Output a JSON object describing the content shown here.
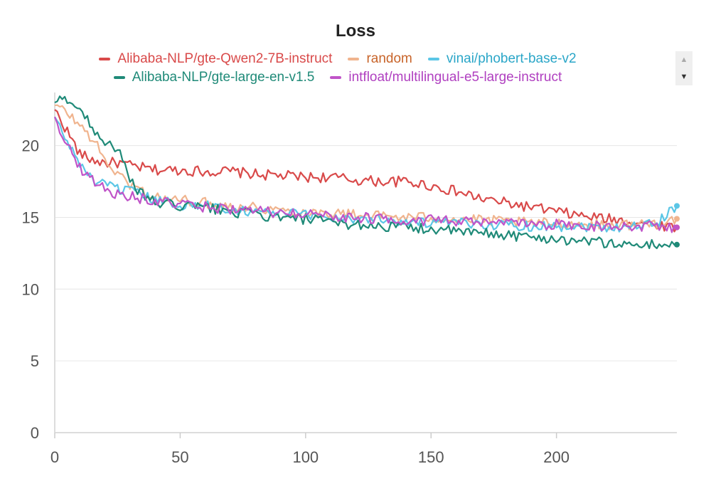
{
  "chart_data": {
    "type": "line",
    "title": "Loss",
    "xlabel": "",
    "ylabel": "",
    "xlim": [
      0,
      248
    ],
    "ylim": [
      0,
      23.7
    ],
    "xticks": [
      0,
      50,
      100,
      150,
      200
    ],
    "yticks": [
      0,
      5,
      10,
      15,
      20
    ],
    "grid": true,
    "legend_position": "top-center",
    "series": [
      {
        "name": "Alibaba-NLP/gte-Qwen2-7B-instruct",
        "color": "#d94a4a",
        "legend_text_color": "#d94a4a",
        "points": [
          [
            0,
            22.5
          ],
          [
            5,
            21.0
          ],
          [
            10,
            19.4
          ],
          [
            15,
            19.0
          ],
          [
            20,
            18.8
          ],
          [
            25,
            18.8
          ],
          [
            30,
            18.6
          ],
          [
            40,
            18.3
          ],
          [
            50,
            18.3
          ],
          [
            60,
            18.2
          ],
          [
            70,
            18.2
          ],
          [
            80,
            18.0
          ],
          [
            90,
            17.9
          ],
          [
            100,
            17.8
          ],
          [
            110,
            17.8
          ],
          [
            120,
            17.6
          ],
          [
            130,
            17.5
          ],
          [
            140,
            17.5
          ],
          [
            150,
            17.2
          ],
          [
            160,
            16.8
          ],
          [
            170,
            16.3
          ],
          [
            180,
            16.0
          ],
          [
            190,
            15.7
          ],
          [
            200,
            15.4
          ],
          [
            210,
            15.1
          ],
          [
            220,
            14.9
          ],
          [
            230,
            14.7
          ],
          [
            240,
            14.5
          ],
          [
            248,
            14.3
          ]
        ]
      },
      {
        "name": "random",
        "color": "#f0b48e",
        "legend_text_color": "#c8642a",
        "points": [
          [
            0,
            22.8
          ],
          [
            5,
            22.3
          ],
          [
            10,
            21.4
          ],
          [
            15,
            20.5
          ],
          [
            20,
            19.0
          ],
          [
            25,
            18.0
          ],
          [
            30,
            17.3
          ],
          [
            40,
            16.4
          ],
          [
            50,
            16.2
          ],
          [
            60,
            16.0
          ],
          [
            70,
            15.8
          ],
          [
            80,
            15.7
          ],
          [
            90,
            15.5
          ],
          [
            100,
            15.4
          ],
          [
            110,
            15.3
          ],
          [
            120,
            15.2
          ],
          [
            130,
            15.1
          ],
          [
            140,
            15.0
          ],
          [
            150,
            15.0
          ],
          [
            160,
            14.9
          ],
          [
            170,
            14.8
          ],
          [
            180,
            14.7
          ],
          [
            190,
            14.6
          ],
          [
            200,
            14.6
          ],
          [
            210,
            14.5
          ],
          [
            220,
            14.5
          ],
          [
            230,
            14.5
          ],
          [
            240,
            14.6
          ],
          [
            248,
            14.9
          ]
        ]
      },
      {
        "name": "vinai/phobert-base-v2",
        "color": "#5bc6e6",
        "legend_text_color": "#2aa6c8",
        "points": [
          [
            0,
            22.0
          ],
          [
            5,
            20.2
          ],
          [
            10,
            18.8
          ],
          [
            15,
            17.6
          ],
          [
            20,
            17.2
          ],
          [
            25,
            17.0
          ],
          [
            30,
            16.8
          ],
          [
            40,
            16.2
          ],
          [
            50,
            15.9
          ],
          [
            60,
            15.8
          ],
          [
            70,
            15.6
          ],
          [
            80,
            15.4
          ],
          [
            90,
            15.3
          ],
          [
            100,
            15.2
          ],
          [
            110,
            15.0
          ],
          [
            120,
            14.9
          ],
          [
            130,
            14.9
          ],
          [
            140,
            14.7
          ],
          [
            150,
            14.6
          ],
          [
            160,
            14.6
          ],
          [
            170,
            14.5
          ],
          [
            180,
            14.5
          ],
          [
            190,
            14.4
          ],
          [
            200,
            14.4
          ],
          [
            210,
            14.4
          ],
          [
            220,
            14.3
          ],
          [
            230,
            14.4
          ],
          [
            240,
            14.6
          ],
          [
            248,
            15.8
          ]
        ]
      },
      {
        "name": "Alibaba-NLP/gte-large-en-v1.5",
        "color": "#1f8a78",
        "legend_text_color": "#1f8a78",
        "points": [
          [
            0,
            23.0
          ],
          [
            5,
            23.3
          ],
          [
            10,
            22.5
          ],
          [
            15,
            21.3
          ],
          [
            20,
            20.3
          ],
          [
            25,
            19.8
          ],
          [
            30,
            17.5
          ],
          [
            35,
            16.6
          ],
          [
            40,
            16.0
          ],
          [
            50,
            15.8
          ],
          [
            60,
            15.7
          ],
          [
            70,
            15.4
          ],
          [
            80,
            15.2
          ],
          [
            90,
            14.9
          ],
          [
            100,
            14.9
          ],
          [
            110,
            14.6
          ],
          [
            120,
            14.5
          ],
          [
            130,
            14.4
          ],
          [
            140,
            14.3
          ],
          [
            150,
            14.2
          ],
          [
            160,
            14.0
          ],
          [
            170,
            13.9
          ],
          [
            180,
            13.8
          ],
          [
            190,
            13.6
          ],
          [
            200,
            13.5
          ],
          [
            210,
            13.4
          ],
          [
            220,
            13.2
          ],
          [
            230,
            13.1
          ],
          [
            240,
            13.1
          ],
          [
            248,
            13.1
          ]
        ]
      },
      {
        "name": "intfloat/multilingual-e5-large-instruct",
        "color": "#c054c8",
        "legend_text_color": "#b040c0",
        "points": [
          [
            0,
            22.0
          ],
          [
            5,
            20.0
          ],
          [
            10,
            18.5
          ],
          [
            15,
            17.6
          ],
          [
            20,
            17.0
          ],
          [
            25,
            16.6
          ],
          [
            30,
            16.5
          ],
          [
            40,
            16.1
          ],
          [
            50,
            15.9
          ],
          [
            60,
            15.7
          ],
          [
            70,
            15.6
          ],
          [
            80,
            15.4
          ],
          [
            90,
            15.3
          ],
          [
            100,
            15.2
          ],
          [
            110,
            15.1
          ],
          [
            120,
            15.0
          ],
          [
            130,
            14.9
          ],
          [
            140,
            14.8
          ],
          [
            150,
            14.8
          ],
          [
            160,
            14.7
          ],
          [
            170,
            14.6
          ],
          [
            180,
            14.6
          ],
          [
            190,
            14.5
          ],
          [
            200,
            14.5
          ],
          [
            210,
            14.4
          ],
          [
            220,
            14.4
          ],
          [
            230,
            14.4
          ],
          [
            240,
            14.4
          ],
          [
            248,
            14.3
          ]
        ]
      }
    ]
  },
  "legend": {
    "rows": [
      [
        0,
        1,
        2
      ],
      [
        3,
        4
      ]
    ],
    "scroll_up_icon": "▲",
    "scroll_down_icon": "▼"
  }
}
